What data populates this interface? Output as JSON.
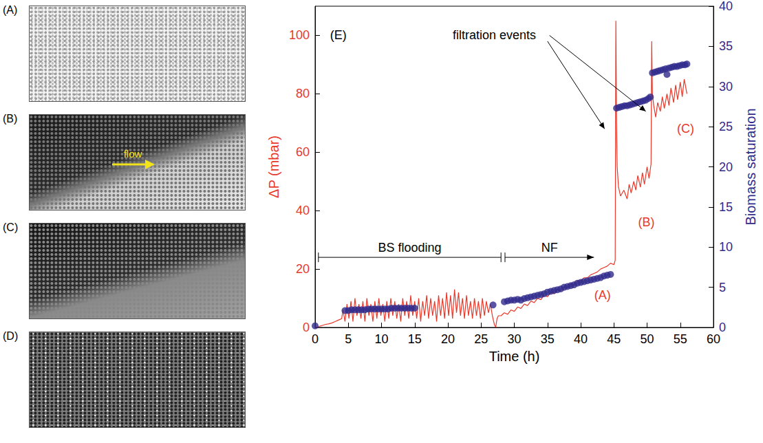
{
  "chart_data": {
    "type": "line",
    "xlabel": "Time (h)",
    "ylabel": "ΔP (mbar)",
    "y2label": "Biomass saturation",
    "xlim": [
      0,
      60
    ],
    "xticks": [
      0,
      5,
      10,
      15,
      20,
      25,
      30,
      35,
      40,
      45,
      50,
      55,
      60
    ],
    "ylim": [
      0,
      110
    ],
    "yticks": [
      0,
      20,
      40,
      60,
      80,
      100
    ],
    "y2lim": [
      0,
      40
    ],
    "y2ticks": [
      0,
      5,
      10,
      15,
      20,
      25,
      30,
      35,
      40
    ],
    "grid": false,
    "series": [
      {
        "name": "ΔP (mbar)",
        "type": "line",
        "color": "#e8382a",
        "line_style": "solid",
        "x": [
          0,
          0.5,
          1,
          1.5,
          2,
          2.5,
          3,
          3.5,
          4,
          4.2,
          4.5,
          4.8,
          5.1,
          5.4,
          5.7,
          6.0,
          6.3,
          6.6,
          6.9,
          7.2,
          7.5,
          7.8,
          8.1,
          8.4,
          8.7,
          9.0,
          9.3,
          9.6,
          9.9,
          10.2,
          10.5,
          10.8,
          11.1,
          11.4,
          11.7,
          12.0,
          12.3,
          12.6,
          12.9,
          13.2,
          13.5,
          13.8,
          14.1,
          14.4,
          14.7,
          15.0,
          15.3,
          15.6,
          15.9,
          16.2,
          16.5,
          16.8,
          17.1,
          17.4,
          17.7,
          18.0,
          18.3,
          18.6,
          18.9,
          19.2,
          19.5,
          19.8,
          20.1,
          20.4,
          20.7,
          21.0,
          21.3,
          21.6,
          21.9,
          22.2,
          22.5,
          22.8,
          23.1,
          23.4,
          23.7,
          24.0,
          24.3,
          24.6,
          24.9,
          25.2,
          25.5,
          25.8,
          26.1,
          26.4,
          26.7,
          27.0,
          27.2,
          27.4,
          27.6,
          28,
          28.5,
          29,
          29.5,
          30,
          30.5,
          31,
          31.5,
          32,
          32.5,
          33,
          33.5,
          34,
          34.5,
          35,
          35.5,
          36,
          36.5,
          37,
          37.5,
          38,
          38.5,
          39,
          39.5,
          40,
          40.5,
          41,
          41.5,
          42,
          42.5,
          43,
          43.5,
          44,
          44.5,
          45,
          45.2,
          45.3,
          45.4,
          45.5,
          45.7,
          46,
          46.5,
          47,
          47.3,
          47.6,
          48,
          48.3,
          48.6,
          49,
          49.3,
          49.6,
          50,
          50.3,
          50.6,
          50.7,
          50.8,
          51,
          51.3,
          51.6,
          52,
          52.3,
          52.6,
          53,
          53.3,
          53.6,
          54,
          54.3,
          54.6,
          55,
          55.3,
          55.6,
          56
        ],
        "values": [
          0,
          0.3,
          0.6,
          1,
          1.2,
          1.5,
          2,
          2.5,
          3,
          6,
          2,
          8,
          3,
          9,
          2,
          10,
          4,
          8,
          3,
          9,
          2,
          10,
          4,
          8,
          2,
          9,
          3,
          10,
          4,
          8,
          2,
          9,
          3,
          10,
          4,
          9,
          3,
          8,
          2,
          10,
          4,
          9,
          3,
          11,
          4,
          9,
          3,
          10,
          2,
          9,
          4,
          11,
          3,
          10,
          4,
          9,
          2,
          11,
          4,
          10,
          3,
          12,
          4,
          11,
          3,
          13,
          5,
          12,
          4,
          10,
          3,
          11,
          4,
          9,
          3,
          10,
          4,
          9,
          3,
          10,
          4,
          9,
          5,
          8,
          4,
          1,
          0,
          3,
          4,
          4,
          5,
          4.5,
          6,
          5.5,
          7,
          6.5,
          8,
          7.5,
          9,
          8.5,
          10,
          9.5,
          11,
          10.5,
          12,
          11.5,
          13,
          12.5,
          14,
          13.5,
          15,
          14.5,
          16,
          16,
          17,
          17,
          18,
          18.5,
          19,
          20,
          20.5,
          21,
          22,
          21.5,
          23,
          105,
          70,
          55,
          48,
          45,
          47,
          44,
          49,
          46,
          50,
          47,
          52,
          48,
          53,
          49,
          55,
          51,
          56,
          98,
          80,
          76,
          72,
          77,
          74,
          79,
          75,
          80,
          76,
          82,
          77,
          83,
          78,
          84,
          79,
          85,
          80
        ]
      },
      {
        "name": "Biomass saturation",
        "type": "scatter",
        "axis": "y2",
        "color": "#2f2a8c",
        "marker": "circle",
        "x": [
          0,
          4.5,
          5,
          5.5,
          6,
          6.5,
          7,
          7.5,
          8,
          8.5,
          9,
          9.5,
          10,
          10.5,
          11,
          11.5,
          12,
          12.5,
          13,
          13.5,
          14,
          14.5,
          15,
          26.8,
          28.5,
          29,
          29.5,
          30,
          30.5,
          31,
          31.5,
          32,
          32.5,
          33,
          33.5,
          34,
          34.5,
          35,
          35.5,
          36,
          36.5,
          37,
          37.5,
          38,
          38.5,
          39,
          39.5,
          40,
          40.5,
          41,
          41.5,
          42,
          42.5,
          43,
          43.5,
          44,
          44.5,
          45.4,
          45.8,
          46.2,
          46.6,
          47,
          47.4,
          47.8,
          48.2,
          48.6,
          49,
          49.4,
          49.8,
          50.2,
          50.5,
          50.8,
          51.2,
          51.6,
          52,
          52.4,
          52.8,
          53.0,
          53.3,
          53.7,
          54.1,
          54.5,
          54.9,
          55.3,
          55.7,
          56
        ],
        "values": [
          0.2,
          2.1,
          2.1,
          2.2,
          2.2,
          2.2,
          2.2,
          2.2,
          2.3,
          2.3,
          2.3,
          2.3,
          2.3,
          2.3,
          2.3,
          2.4,
          2.4,
          2.4,
          2.4,
          2.4,
          2.4,
          2.4,
          2.4,
          2.8,
          3.2,
          3.3,
          3.4,
          3.4,
          3.5,
          3.4,
          3.6,
          3.7,
          3.8,
          3.9,
          4.0,
          4.1,
          4.2,
          4.4,
          4.5,
          4.6,
          4.7,
          4.8,
          5.0,
          5.1,
          5.2,
          5.3,
          5.5,
          5.6,
          5.7,
          5.8,
          5.9,
          6.0,
          6.1,
          6.2,
          6.4,
          6.5,
          6.6,
          27.3,
          27.4,
          27.5,
          27.6,
          27.6,
          27.7,
          27.8,
          27.9,
          28.0,
          28.1,
          28.2,
          28.3,
          28.5,
          28.7,
          31.7,
          31.8,
          31.9,
          32.0,
          32.1,
          32.2,
          31.5,
          32.3,
          32.4,
          32.5,
          32.5,
          32.6,
          32.7,
          32.7,
          32.8
        ]
      }
    ],
    "annotations": [
      {
        "text": "(E)",
        "x": 3.5,
        "y": 100,
        "color": "#000000"
      },
      {
        "text": "filtration events",
        "x": 27,
        "y": 100,
        "color": "#000000",
        "arrows": [
          {
            "from": [
              35,
              98
            ],
            "to": [
              43.6,
              68
            ]
          },
          {
            "from": [
              35.3,
              100
            ],
            "to": [
              49.8,
              74
            ]
          }
        ]
      },
      {
        "text": "(A)",
        "x": 43.3,
        "y": 11,
        "color": "#e8382a"
      },
      {
        "text": "(B)",
        "x": 49.9,
        "y": 36,
        "color": "#e8382a"
      },
      {
        "text": "(C)",
        "x": 55.8,
        "y": 68,
        "color": "#e8382a"
      }
    ],
    "spans": [
      {
        "text": "BS flooding",
        "x": [
          0.5,
          28
        ],
        "y": 24,
        "marker": "bar"
      },
      {
        "text": "NF",
        "x": [
          28.6,
          42
        ],
        "y": 24,
        "marker": "arrow"
      }
    ]
  },
  "image_panels": [
    {
      "label": "(A)"
    },
    {
      "label": "(B)",
      "annotation": "flow"
    },
    {
      "label": "(C)"
    },
    {
      "label": "(D)"
    }
  ]
}
